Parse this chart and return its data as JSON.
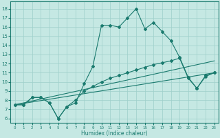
{
  "xlabel": "Humidex (Indice chaleur)",
  "xlim": [
    -0.5,
    23.5
  ],
  "ylim": [
    5.5,
    18.8
  ],
  "yticks": [
    6,
    7,
    8,
    9,
    10,
    11,
    12,
    13,
    14,
    15,
    16,
    17,
    18
  ],
  "xticks": [
    0,
    1,
    2,
    3,
    4,
    5,
    6,
    7,
    8,
    9,
    10,
    11,
    12,
    13,
    14,
    15,
    16,
    17,
    18,
    19,
    20,
    21,
    22,
    23
  ],
  "bg_color": "#c5e8e3",
  "grid_color": "#9ecfca",
  "line_color": "#1a7a6e",
  "line1_x": [
    0,
    1,
    2,
    3,
    4,
    5,
    6,
    7,
    8,
    9,
    10,
    11,
    12,
    13,
    14,
    15,
    16,
    17,
    18,
    19,
    20,
    21,
    22,
    23
  ],
  "line1_y": [
    7.5,
    7.5,
    8.3,
    8.3,
    7.7,
    6.0,
    7.3,
    7.7,
    9.8,
    11.7,
    16.2,
    16.2,
    16.0,
    17.0,
    18.0,
    15.8,
    16.5,
    15.5,
    14.5,
    12.7,
    10.5,
    9.3,
    10.7,
    11.0
  ],
  "line2_x": [
    0,
    1,
    2,
    3,
    4,
    5,
    6,
    7,
    8,
    9,
    10,
    11,
    12,
    13,
    14,
    15,
    16,
    17,
    18,
    19,
    20,
    21,
    22,
    23
  ],
  "line2_y": [
    7.5,
    7.5,
    8.3,
    8.3,
    7.7,
    6.0,
    7.3,
    8.0,
    9.0,
    9.5,
    10.0,
    10.4,
    10.7,
    11.0,
    11.3,
    11.6,
    11.9,
    12.1,
    12.3,
    12.6,
    10.4,
    9.3,
    10.6,
    11.0
  ],
  "line3_x": [
    0,
    23
  ],
  "line3_y": [
    7.5,
    12.3
  ],
  "line4_x": [
    0,
    23
  ],
  "line4_y": [
    7.5,
    11.0
  ]
}
